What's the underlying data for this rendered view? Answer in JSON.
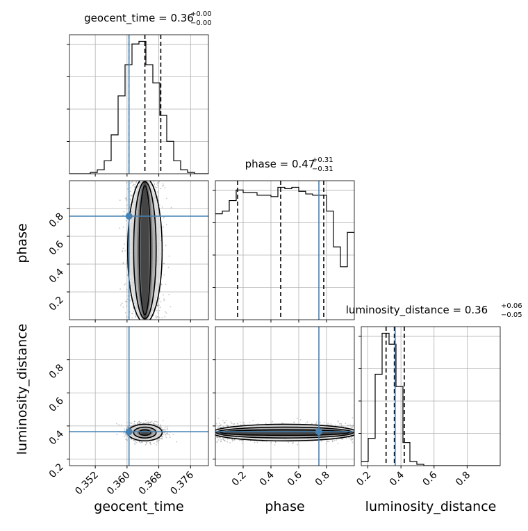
{
  "chart_data": {
    "type": "corner",
    "parameters": [
      "geocent_time",
      "phase",
      "luminosity_distance"
    ],
    "truth": {
      "geocent_time": 0.3605,
      "phase": 0.745,
      "luminosity_distance": 0.365
    },
    "titles": {
      "geocent_time": {
        "name": "geocent_time",
        "median": "0.36",
        "plus": "+0.00",
        "minus": "−0.00"
      },
      "phase": {
        "name": "phase",
        "median": "0.47",
        "plus": "+0.31",
        "minus": "−0.31"
      },
      "luminosity_distance": {
        "name": "luminosity_distance",
        "median": "0.36",
        "plus": "+0.06",
        "minus": "−0.05"
      }
    },
    "axes": {
      "geocent_time": {
        "label": "geocent_time",
        "range": [
          0.3455,
          0.3805
        ],
        "ticks": [
          0.352,
          0.36,
          0.368,
          0.376
        ],
        "tick_labels": [
          "0.352",
          "0.360",
          "0.368",
          "0.376"
        ]
      },
      "phase": {
        "label": "phase",
        "range": [
          0.0,
          1.0
        ],
        "ticks": [
          0.2,
          0.4,
          0.6,
          0.8
        ],
        "tick_labels": [
          "0.2",
          "0.4",
          "0.6",
          "0.8"
        ]
      },
      "luminosity_distance": {
        "label": "luminosity_distance",
        "range": [
          0.16,
          1.0
        ],
        "ticks": [
          0.2,
          0.4,
          0.6,
          0.8
        ],
        "tick_labels": [
          "0.2",
          "0.4",
          "0.6",
          "0.8"
        ]
      }
    },
    "hist_1d": {
      "geocent_time": {
        "edges": [
          0.3455,
          0.34725,
          0.349,
          0.35075,
          0.3525,
          0.35425,
          0.356,
          0.35775,
          0.3595,
          0.36125,
          0.363,
          0.36475,
          0.3665,
          0.36825,
          0.37,
          0.37175,
          0.3735,
          0.37525,
          0.377,
          0.37875,
          0.3805
        ],
        "counts": [
          0,
          0,
          0,
          1,
          3,
          10,
          30,
          60,
          84,
          100,
          102,
          84,
          70,
          45,
          25,
          10,
          3,
          1,
          0,
          0
        ],
        "quantiles": [
          0.3605,
          0.3645,
          0.3685
        ]
      },
      "phase": {
        "edges": [
          0,
          0.05,
          0.1,
          0.15,
          0.2,
          0.25,
          0.3,
          0.35,
          0.4,
          0.45,
          0.5,
          0.55,
          0.6,
          0.65,
          0.7,
          0.75,
          0.8,
          0.85,
          0.9,
          0.95,
          1.0
        ],
        "counts": [
          80,
          82,
          90,
          98,
          96,
          96,
          94,
          94,
          93,
          100,
          99,
          100,
          97,
          95,
          94,
          94,
          82,
          55,
          40,
          66
        ],
        "quantiles": [
          0.16,
          0.47,
          0.78
        ]
      },
      "luminosity_distance": {
        "edges": [
          0.16,
          0.202,
          0.244,
          0.286,
          0.328,
          0.37,
          0.412,
          0.454,
          0.496,
          0.538,
          0.58,
          0.622,
          0.664,
          0.706,
          0.748,
          0.79,
          0.832,
          0.874,
          0.916,
          0.958,
          1.0
        ],
        "counts": [
          3,
          20,
          67,
          97,
          89,
          58,
          17,
          3,
          1,
          0,
          0,
          0,
          0,
          0,
          0,
          0,
          0,
          0,
          0,
          0
        ],
        "quantiles": [
          0.31,
          0.36,
          0.42
        ]
      }
    },
    "density_2d": {
      "phase_vs_geocent_time": {
        "x": "geocent_time",
        "y": "phase",
        "center": [
          0.3645,
          0.5
        ],
        "spread": [
          0.0026,
          0.29
        ],
        "levels": [
          0.39,
          0.86,
          0.99
        ]
      },
      "luminosity_distance_vs_geocent_time": {
        "x": "geocent_time",
        "y": "luminosity_distance",
        "center": [
          0.3645,
          0.36
        ],
        "spread": [
          0.0026,
          0.03
        ],
        "levels": [
          0.39,
          0.86,
          0.99
        ]
      },
      "luminosity_distance_vs_phase": {
        "x": "phase",
        "y": "luminosity_distance",
        "center": [
          0.5,
          0.36
        ],
        "spread": [
          0.29,
          0.03
        ],
        "levels": [
          0.39,
          0.86,
          0.99
        ]
      }
    },
    "grid": true,
    "colors": {
      "truth": "#4682b4",
      "hist": "#000000",
      "grid": "#b0b0b0",
      "scatter": "#808080"
    }
  }
}
